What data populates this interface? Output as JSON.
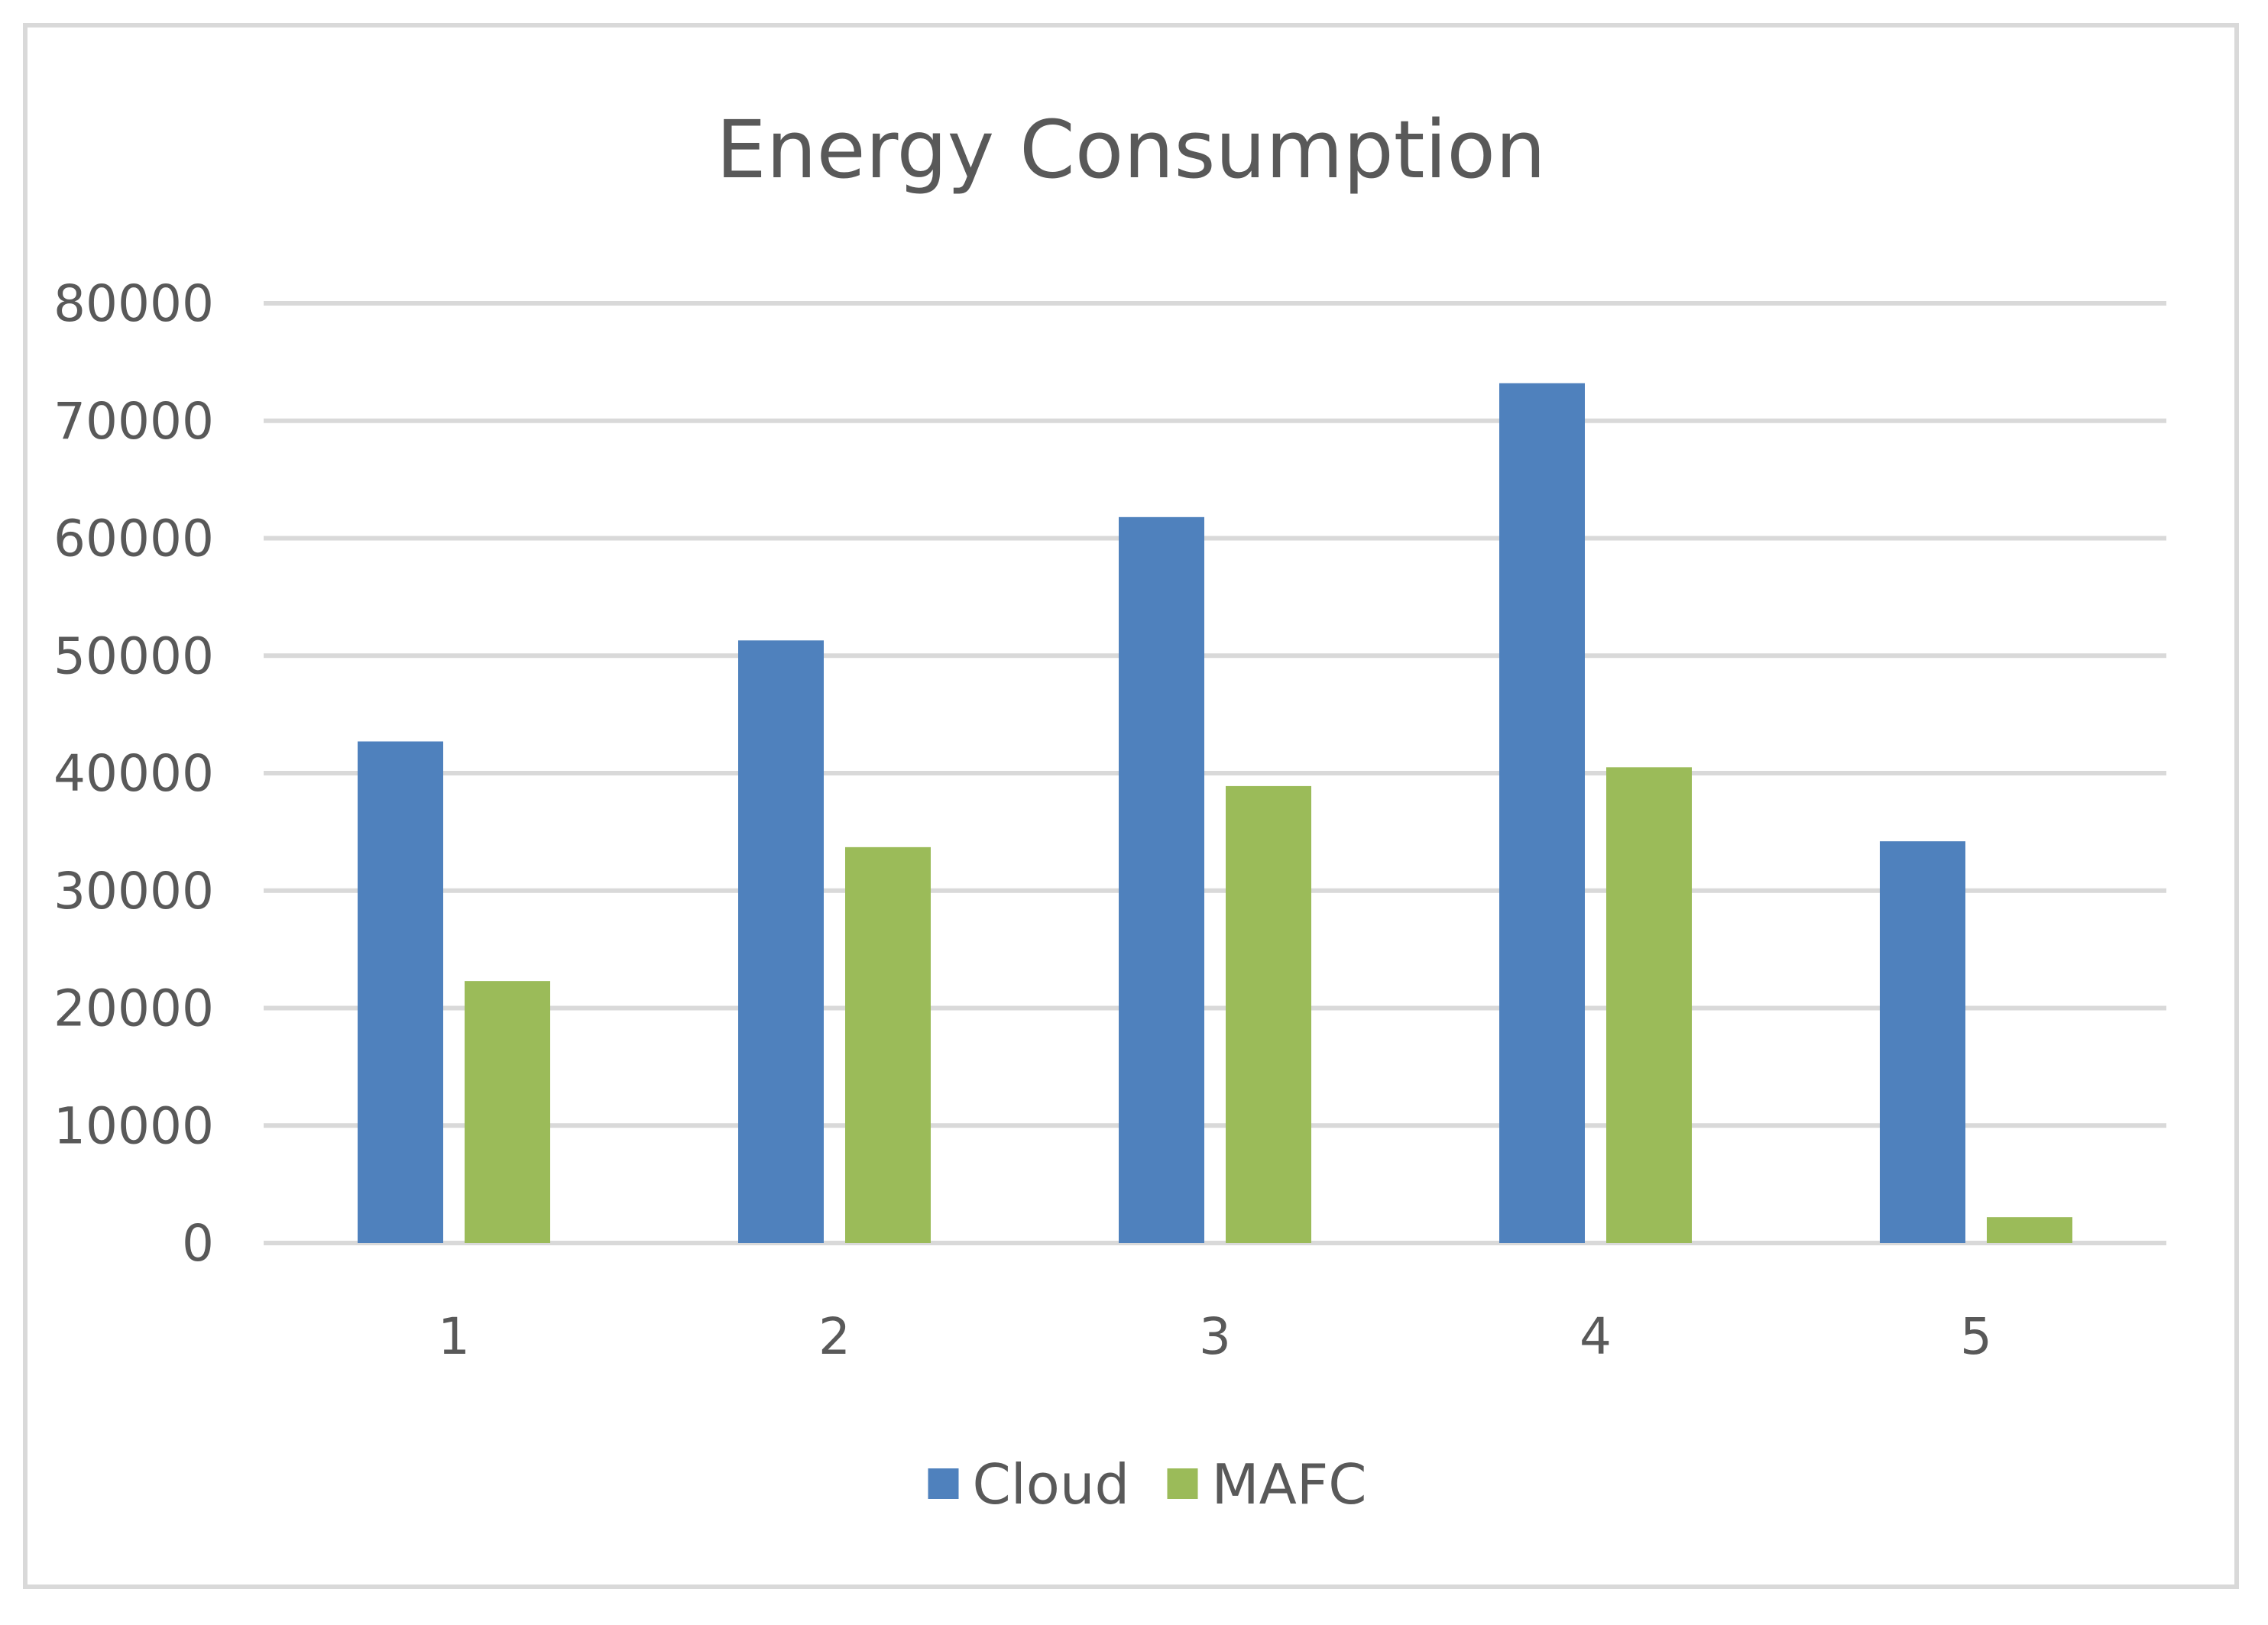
{
  "chart_data": {
    "type": "bar",
    "title": "Energy Consumption",
    "categories": [
      "1",
      "2",
      "3",
      "4",
      "5"
    ],
    "series": [
      {
        "name": "Cloud",
        "color": "#4F81BD",
        "values": [
          42700,
          51300,
          61800,
          73200,
          34200
        ]
      },
      {
        "name": "MAFC",
        "color": "#9BBB59",
        "values": [
          22300,
          33700,
          38900,
          40500,
          2200
        ]
      }
    ],
    "xlabel": "",
    "ylabel": "",
    "ylim": [
      0,
      80000
    ],
    "yticks": [
      "0",
      "10000",
      "20000",
      "30000",
      "40000",
      "50000",
      "60000",
      "70000",
      "80000"
    ],
    "grid": true,
    "legend": "bottom-center",
    "gridline_color": "#d9d9d9"
  }
}
